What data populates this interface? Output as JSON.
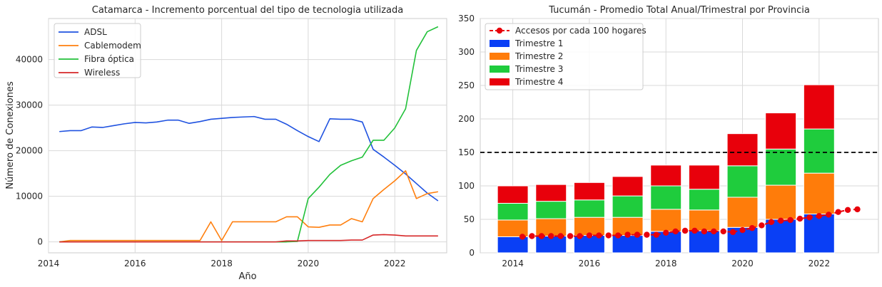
{
  "chart_data": [
    {
      "type": "line",
      "title": "Catamarca - Incremento porcentual del tipo de tecnologia utilizada",
      "xlabel": "Año",
      "ylabel": "Número de Conexiones",
      "xlim": [
        2014,
        2023.2
      ],
      "ylim": [
        -2400,
        49000
      ],
      "xticks": [
        2014,
        2016,
        2018,
        2020,
        2022
      ],
      "yticks": [
        0,
        10000,
        20000,
        30000,
        40000
      ],
      "grid": true,
      "legend": "top-left",
      "x": [
        2014.25,
        2014.5,
        2014.75,
        2015.0,
        2015.25,
        2015.5,
        2015.75,
        2016.0,
        2016.25,
        2016.5,
        2016.75,
        2017.0,
        2017.25,
        2017.5,
        2017.75,
        2018.0,
        2018.25,
        2018.5,
        2018.75,
        2019.0,
        2019.25,
        2019.5,
        2019.75,
        2020.0,
        2020.25,
        2020.5,
        2020.75,
        2021.0,
        2021.25,
        2021.5,
        2021.75,
        2022.0,
        2022.25,
        2022.5,
        2022.75,
        2023.0
      ],
      "series": [
        {
          "name": "ADSL",
          "color": "#1f52e0",
          "values": [
            24200,
            24400,
            24400,
            25200,
            25100,
            25500,
            25900,
            26200,
            26100,
            26300,
            26700,
            26700,
            26000,
            26400,
            26900,
            27100,
            27300,
            27400,
            27500,
            26900,
            26900,
            25800,
            24400,
            23100,
            22000,
            27000,
            26900,
            26900,
            26300,
            20300,
            18600,
            16800,
            14900,
            12800,
            10700,
            9000
          ]
        },
        {
          "name": "Cablemodem",
          "color": "#ff7f0e",
          "values": [
            0,
            300,
            300,
            300,
            300,
            300,
            300,
            300,
            300,
            300,
            300,
            300,
            300,
            300,
            4400,
            300,
            4400,
            4400,
            4400,
            4400,
            4400,
            5500,
            5500,
            3300,
            3200,
            3700,
            3700,
            5100,
            4400,
            9500,
            11500,
            13400,
            15600,
            9500,
            10600,
            11000
          ]
        },
        {
          "name": "Fibra óptica",
          "color": "#22c13a",
          "values": [
            0,
            0,
            0,
            0,
            0,
            0,
            0,
            0,
            0,
            0,
            0,
            0,
            0,
            0,
            0,
            0,
            0,
            0,
            0,
            0,
            0,
            0,
            100,
            9500,
            12000,
            14800,
            16800,
            17800,
            18600,
            22300,
            22300,
            25000,
            29200,
            42000,
            46100,
            47200
          ]
        },
        {
          "name": "Wireless",
          "color": "#d62728",
          "values": [
            0,
            0,
            0,
            0,
            0,
            0,
            0,
            0,
            0,
            0,
            0,
            0,
            0,
            0,
            0,
            0,
            0,
            0,
            0,
            0,
            0,
            200,
            200,
            300,
            300,
            300,
            300,
            400,
            400,
            1500,
            1600,
            1500,
            1300,
            1300,
            1300,
            1300
          ]
        }
      ]
    },
    {
      "type": "bar",
      "stacked": true,
      "title": "Tucumán - Promedio Total Anual/Trimestral por Provincia",
      "xlabel": "",
      "ylabel": "",
      "xlim": [
        2013.15,
        2023.55
      ],
      "ylim": [
        0,
        350
      ],
      "xticks": [
        2014,
        2016,
        2018,
        2020,
        2022
      ],
      "yticks": [
        0,
        50,
        100,
        150,
        200,
        250,
        300,
        350
      ],
      "grid": true,
      "legend": "top-left",
      "reference_line": {
        "value": 150,
        "style": "dashed",
        "color": "#000000"
      },
      "categories": [
        2014,
        2015,
        2016,
        2017,
        2018,
        2019,
        2020,
        2021,
        2022
      ],
      "series": [
        {
          "name": "Trimestre 1",
          "color": "#0a3ff5",
          "values": [
            24,
            25,
            26,
            26,
            32,
            33,
            38,
            50,
            58
          ]
        },
        {
          "name": "Trimestre 2",
          "color": "#ff7c0a",
          "values": [
            25,
            26,
            27,
            27,
            33,
            31,
            45,
            51,
            61
          ]
        },
        {
          "name": "Trimestre 3",
          "color": "#1fcc3d",
          "values": [
            25,
            26,
            26,
            32,
            35,
            31,
            47,
            54,
            66
          ]
        },
        {
          "name": "Trimestre 4",
          "color": "#e8000b",
          "values": [
            26,
            25,
            26,
            29,
            31,
            36,
            48,
            54,
            66
          ]
        }
      ],
      "line_series": {
        "name": "Accesos por cada 100 hogares",
        "color": "#e8000b",
        "x": [
          2014.25,
          2014.5,
          2014.75,
          2015.0,
          2015.25,
          2015.5,
          2015.75,
          2016.0,
          2016.25,
          2016.5,
          2016.75,
          2017.0,
          2017.25,
          2017.5,
          2017.75,
          2018.0,
          2018.25,
          2018.5,
          2018.75,
          2019.0,
          2019.25,
          2019.5,
          2019.75,
          2020.0,
          2020.25,
          2020.5,
          2020.75,
          2021.0,
          2021.25,
          2021.5,
          2021.75,
          2022.0,
          2022.25,
          2022.5,
          2022.75,
          2023.0
        ],
        "values": [
          24,
          25,
          25,
          25,
          25,
          25,
          25,
          26,
          26,
          26,
          26,
          27,
          27,
          27,
          27,
          30,
          32,
          33,
          33,
          32,
          32,
          32,
          31,
          34,
          37,
          41,
          46,
          48,
          49,
          51,
          53,
          55,
          57,
          61,
          64,
          65
        ]
      }
    }
  ]
}
